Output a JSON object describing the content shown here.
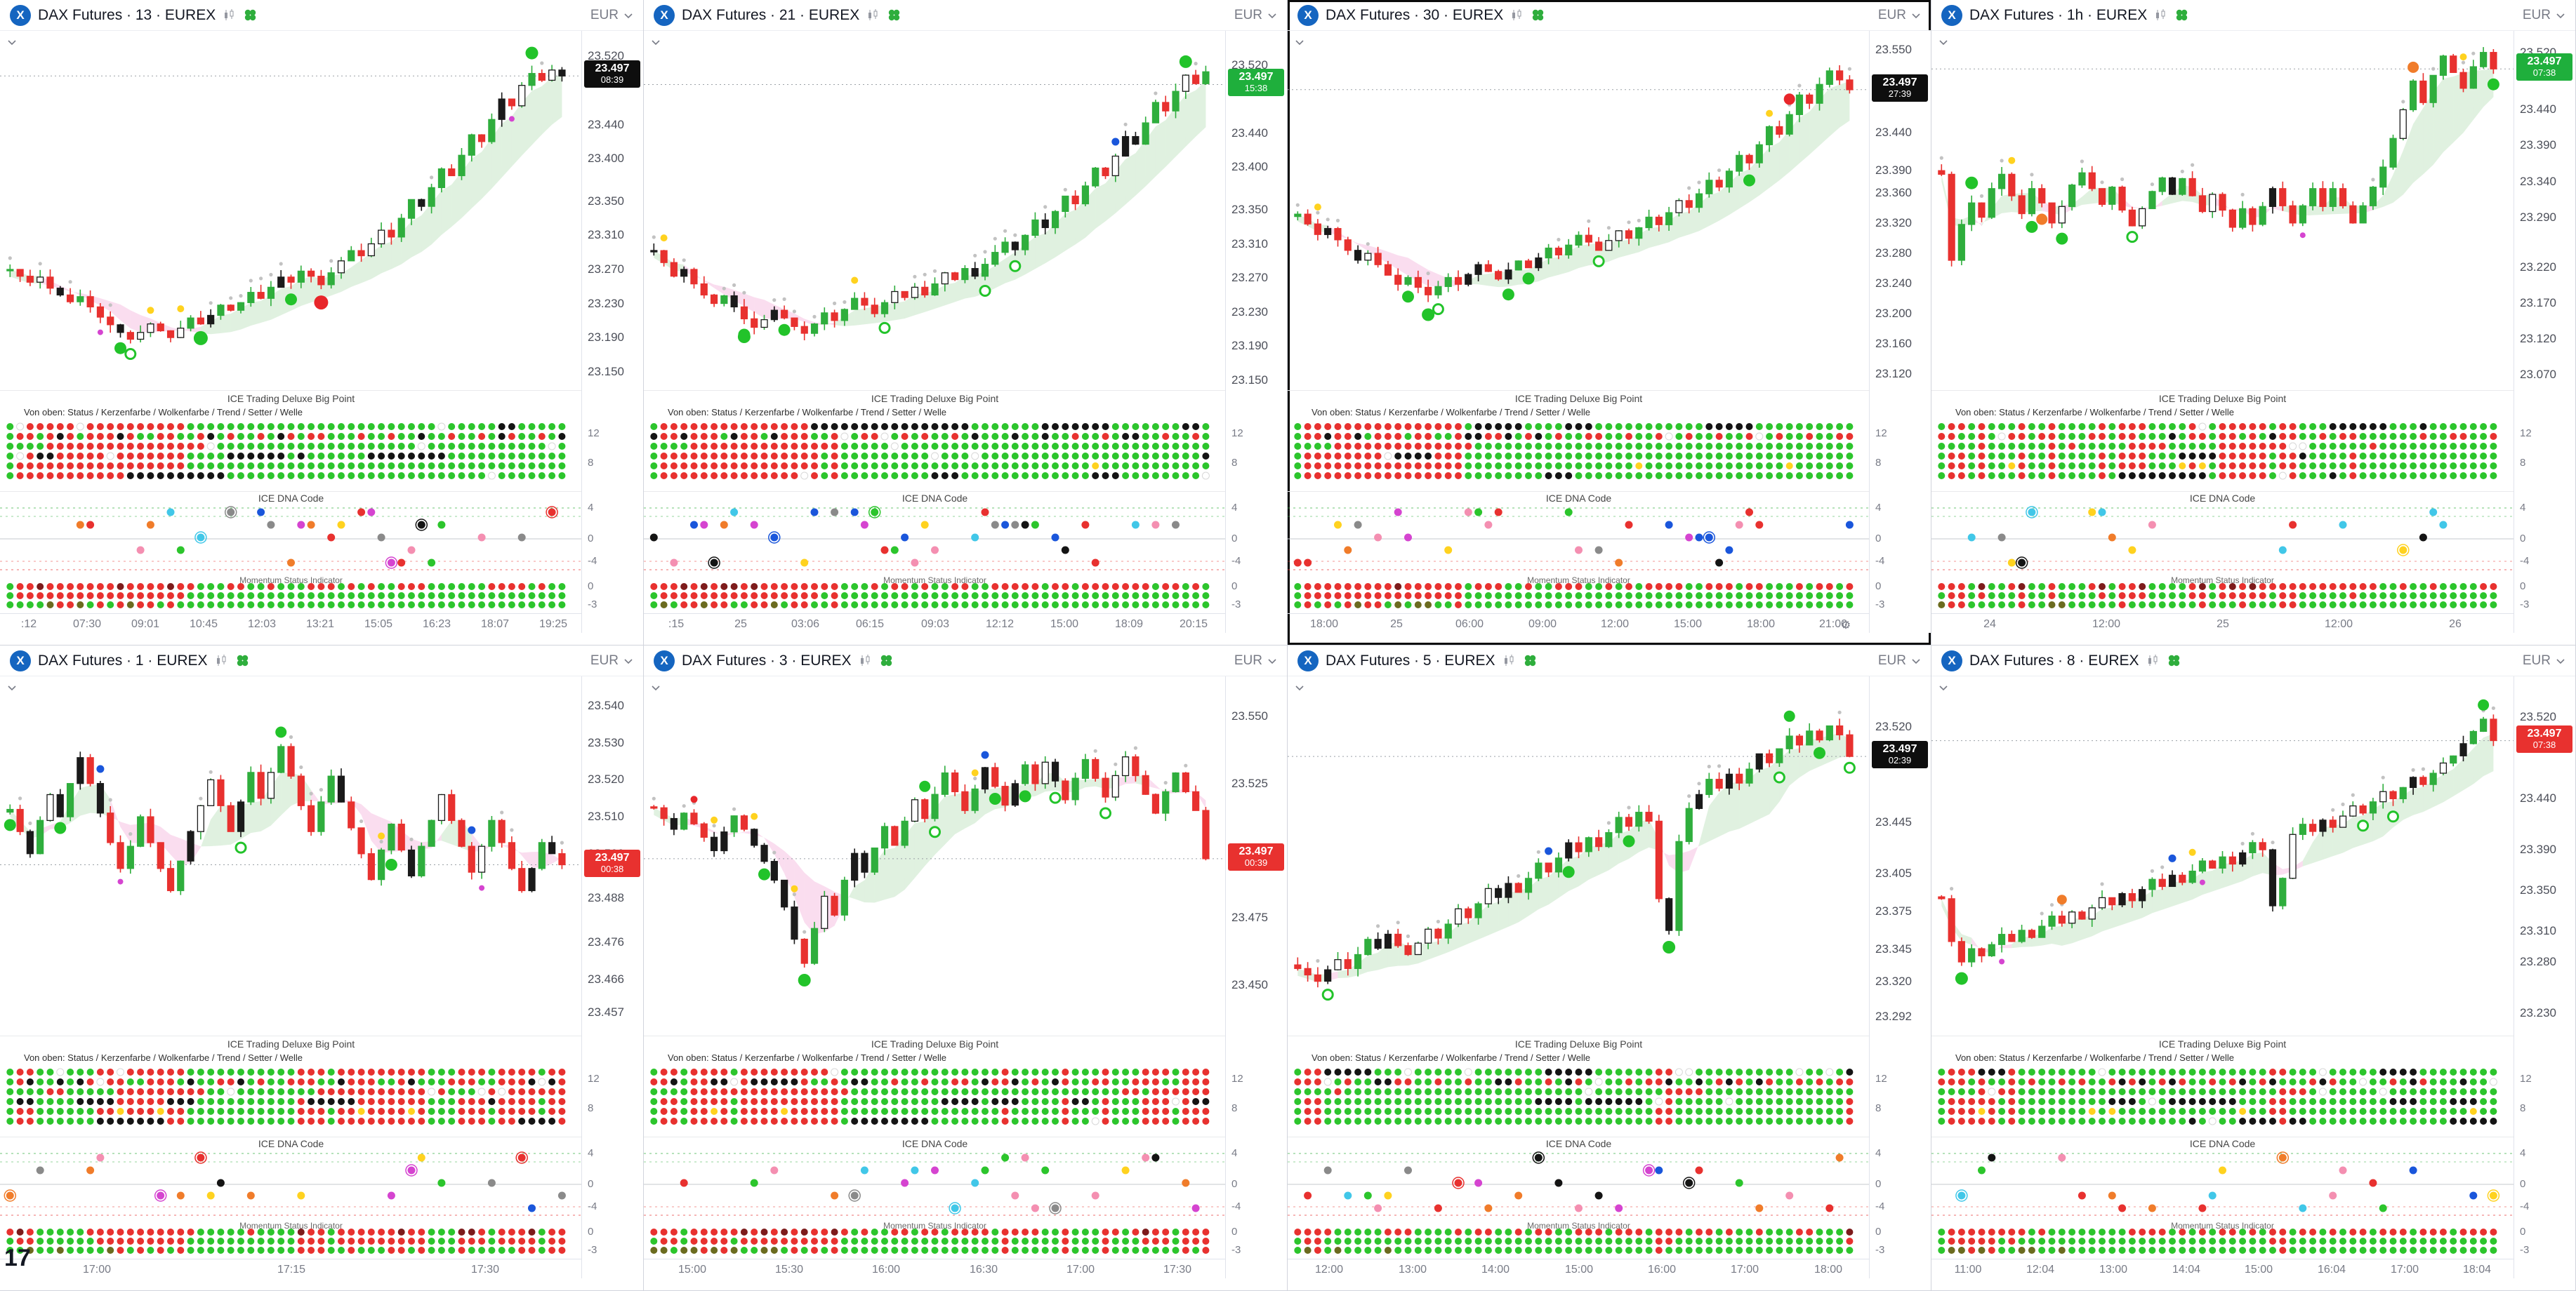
{
  "app": {
    "currency": "EUR",
    "grid": {
      "rows": 2,
      "cols": 4
    }
  },
  "colors": {
    "up": "#2fae3d",
    "down": "#e8312f",
    "black_candle": "#1a1a1a",
    "accent_blue": "#1565c0",
    "badge_black": "#0e0e0e",
    "badge_green": "#1faf3c",
    "badge_red": "#e8312f",
    "dot_green": "#2cc52c",
    "dot_red": "#e8312f",
    "dot_black": "#141414",
    "dot_yellow": "#ffd21f",
    "cloud_green": "rgba(130,200,130,0.25)",
    "cloud_pink": "rgba(242,166,214,0.38)",
    "dna_palette": [
      "#1a56db",
      "#e8312f",
      "#2cc52c",
      "#141414",
      "#d544d0",
      "#f07c2a",
      "#ffd21f",
      "#41c7e8",
      "#f48fb1",
      "#8a8a8a"
    ]
  },
  "indicators": {
    "big_point_title": "ICE Trading Deluxe Big Point",
    "big_point_subtitle": "Von oben: Status / Kerzenfarbe / Wolkenfarbe / Trend / Setter / Welle",
    "big_point_ticks": [
      "12",
      "8"
    ],
    "dna_title": "ICE DNA Code",
    "dna_ticks": [
      "4",
      "0",
      "-4"
    ],
    "momentum_title": "Momentum Status Indicator",
    "momentum_ticks": [
      "0",
      "-3"
    ]
  },
  "panels": [
    {
      "title": "DAX Futures · 13 · EUREX",
      "timeframe": "13",
      "exchange": "EUREX",
      "selected": false,
      "seed": 13,
      "min": 23.125,
      "max": 23.55,
      "ticks": [
        "23.520",
        "23.440",
        "23.400",
        "23.350",
        "23.310",
        "23.270",
        "23.230",
        "23.190",
        "23.150"
      ],
      "badge": {
        "price": "23.497",
        "time": "08:39",
        "style": "black",
        "value": 23.497
      },
      "time_labels": [
        ":12",
        "07:30",
        "09:01",
        "10:45",
        "12:03",
        "13:21",
        "15:05",
        "16:23",
        "18:07",
        "19:25"
      ],
      "gear": false,
      "big_label": "",
      "closes": [
        23.27,
        23.262,
        23.255,
        23.261,
        23.248,
        23.24,
        23.232,
        23.238,
        23.226,
        23.214,
        23.205,
        23.196,
        23.188,
        23.196,
        23.206,
        23.198,
        23.19,
        23.201,
        23.213,
        23.206,
        23.216,
        23.228,
        23.222,
        23.231,
        23.243,
        23.236,
        23.249,
        23.261,
        23.255,
        23.268,
        23.262,
        23.252,
        23.266,
        23.28,
        23.292,
        23.286,
        23.3,
        23.316,
        23.308,
        23.33,
        23.352,
        23.344,
        23.366,
        23.388,
        23.38,
        23.404,
        23.428,
        23.42,
        23.446,
        23.47,
        23.462,
        23.486,
        23.5,
        23.492,
        23.504,
        23.497
      ],
      "markers": [
        {
          "i": 19,
          "color": "#22c32a",
          "r": 10,
          "side": "below"
        },
        {
          "i": 31,
          "color": "#e8262a",
          "r": 10,
          "side": "below"
        },
        {
          "i": 52,
          "color": "#22c32a",
          "r": 9,
          "side": "above"
        }
      ]
    },
    {
      "title": "DAX Futures · 21 · EUREX",
      "timeframe": "21",
      "exchange": "EUREX",
      "selected": false,
      "seed": 21,
      "min": 23.135,
      "max": 23.56,
      "ticks": [
        "23.520",
        "23.440",
        "23.400",
        "23.350",
        "23.310",
        "23.270",
        "23.230",
        "23.190",
        "23.150"
      ],
      "badge": {
        "price": "23.497",
        "time": "15:38",
        "style": "green",
        "value": 23.497
      },
      "time_labels": [
        ":15",
        "25",
        "03:06",
        "06:15",
        "09:03",
        "12:12",
        "15:00",
        "18:09",
        "20:15"
      ],
      "gear": false,
      "big_label": "",
      "closes": [
        23.302,
        23.288,
        23.272,
        23.28,
        23.263,
        23.25,
        23.24,
        23.249,
        23.236,
        23.222,
        23.212,
        23.221,
        23.232,
        23.223,
        23.213,
        23.205,
        23.216,
        23.229,
        23.22,
        23.233,
        23.246,
        23.238,
        23.228,
        23.241,
        23.254,
        23.247,
        23.259,
        23.25,
        23.263,
        23.276,
        23.268,
        23.281,
        23.272,
        23.286,
        23.3,
        23.312,
        23.303,
        23.32,
        23.338,
        23.329,
        23.348,
        23.366,
        23.357,
        23.378,
        23.399,
        23.39,
        23.413,
        23.436,
        23.427,
        23.452,
        23.476,
        23.466,
        23.489,
        23.508,
        23.498,
        23.512
      ],
      "markers": [
        {
          "i": 9,
          "color": "#22c32a",
          "r": 9,
          "side": "below"
        },
        {
          "i": 53,
          "color": "#22c32a",
          "r": 9,
          "side": "above"
        }
      ]
    },
    {
      "title": "DAX Futures · 30 · EUREX",
      "timeframe": "30",
      "exchange": "EUREX",
      "selected": true,
      "seed": 30,
      "min": 23.095,
      "max": 23.575,
      "ticks": [
        "23.550",
        "23.440",
        "23.390",
        "23.360",
        "23.320",
        "23.280",
        "23.240",
        "23.200",
        "23.160",
        "23.120"
      ],
      "badge": {
        "price": "23.497",
        "time": "27:39",
        "style": "black",
        "value": 23.497
      },
      "time_labels": [
        "18:00",
        "25",
        "06:00",
        "09:00",
        "12:00",
        "15:00",
        "18:00",
        "21:00"
      ],
      "gear": true,
      "big_label": "",
      "closes": [
        23.332,
        23.319,
        23.305,
        23.313,
        23.298,
        23.284,
        23.271,
        23.28,
        23.265,
        23.251,
        23.239,
        23.248,
        23.235,
        23.225,
        23.236,
        23.248,
        23.239,
        23.252,
        23.265,
        23.256,
        23.246,
        23.258,
        23.27,
        23.261,
        23.274,
        23.287,
        23.278,
        23.291,
        23.304,
        23.295,
        23.284,
        23.297,
        23.31,
        23.3,
        23.314,
        23.328,
        23.318,
        23.334,
        23.35,
        23.341,
        23.359,
        23.377,
        23.368,
        23.389,
        23.41,
        23.4,
        23.424,
        23.448,
        23.438,
        23.464,
        23.49,
        23.479,
        23.504,
        23.522,
        23.51,
        23.497
      ],
      "markers": [
        {
          "i": 13,
          "color": "#22c32a",
          "r": 9,
          "side": "below"
        },
        {
          "i": 49,
          "color": "#e8262a",
          "r": 8,
          "side": "above"
        }
      ]
    },
    {
      "title": "DAX Futures · 1h · EUREX",
      "timeframe": "1h",
      "exchange": "EUREX",
      "selected": false,
      "seed": 60,
      "min": 23.045,
      "max": 23.55,
      "ticks": [
        "23.520",
        "23.440",
        "23.390",
        "23.340",
        "23.290",
        "23.220",
        "23.170",
        "23.120",
        "23.070"
      ],
      "badge": {
        "price": "23.497",
        "time": "07:38",
        "style": "green",
        "value": 23.497
      },
      "time_labels": [
        "24",
        "12:00",
        "25",
        "12:00",
        "26"
      ],
      "gear": false,
      "big_label": "",
      "closes": [
        23.35,
        23.23,
        23.28,
        23.31,
        23.29,
        23.33,
        23.35,
        23.32,
        23.295,
        23.33,
        23.31,
        23.282,
        23.305,
        23.335,
        23.352,
        23.33,
        23.308,
        23.332,
        23.3,
        23.278,
        23.302,
        23.326,
        23.345,
        23.322,
        23.344,
        23.32,
        23.298,
        23.322,
        23.3,
        23.276,
        23.302,
        23.28,
        23.305,
        23.33,
        23.306,
        23.282,
        23.306,
        23.33,
        23.305,
        23.33,
        23.306,
        23.282,
        23.306,
        23.332,
        23.36,
        23.4,
        23.44,
        23.48,
        23.45,
        23.488,
        23.515,
        23.492,
        23.47,
        23.5,
        23.52,
        23.497
      ],
      "markers": [
        {
          "i": 10,
          "color": "#f07c2a",
          "r": 8,
          "side": "below"
        },
        {
          "i": 47,
          "color": "#f07c2a",
          "r": 8,
          "side": "above"
        },
        {
          "i": 3,
          "color": "#22c32a",
          "r": 9,
          "side": "above"
        }
      ]
    },
    {
      "title": "DAX Futures · 1 · EUREX",
      "timeframe": "1",
      "exchange": "EUREX",
      "selected": false,
      "seed": 1,
      "min": 23.45,
      "max": 23.548,
      "ticks": [
        "23.540",
        "23.530",
        "23.520",
        "23.510",
        "23.500",
        "23.488",
        "23.476",
        "23.466",
        "23.457"
      ],
      "badge": {
        "price": "23.497",
        "time": "00:38",
        "style": "red",
        "value": 23.497
      },
      "time_labels": [
        "17:00",
        "17:15",
        "17:30"
      ],
      "gear": false,
      "big_label": "17",
      "closes": [
        23.512,
        23.506,
        23.5,
        23.509,
        23.516,
        23.51,
        23.519,
        23.526,
        23.519,
        23.511,
        23.503,
        23.496,
        23.502,
        23.51,
        23.503,
        23.496,
        23.49,
        23.498,
        23.506,
        23.513,
        23.52,
        23.513,
        23.506,
        23.514,
        23.522,
        23.515,
        23.522,
        23.529,
        23.521,
        23.513,
        23.506,
        23.514,
        23.521,
        23.514,
        23.507,
        23.5,
        23.493,
        23.501,
        23.508,
        23.501,
        23.494,
        23.502,
        23.509,
        23.516,
        23.509,
        23.502,
        23.495,
        23.502,
        23.509,
        23.503,
        23.496,
        23.49,
        23.496,
        23.503,
        23.5,
        23.497
      ],
      "markers": [
        {
          "i": 27,
          "color": "#22c32a",
          "r": 8,
          "side": "above"
        }
      ]
    },
    {
      "title": "DAX Futures · 3 · EUREX",
      "timeframe": "3",
      "exchange": "EUREX",
      "selected": false,
      "seed": 3,
      "min": 23.43,
      "max": 23.565,
      "ticks": [
        "23.550",
        "23.525",
        "23.500",
        "23.475",
        "23.450"
      ],
      "badge": {
        "price": "23.497",
        "time": "00:39",
        "style": "red",
        "value": 23.497
      },
      "time_labels": [
        "15:00",
        "15:30",
        "16:00",
        "16:30",
        "17:00",
        "17:30"
      ],
      "gear": false,
      "big_label": "",
      "closes": [
        23.516,
        23.512,
        23.508,
        23.514,
        23.51,
        23.505,
        23.5,
        23.507,
        23.513,
        23.508,
        23.502,
        23.496,
        23.489,
        23.479,
        23.467,
        23.458,
        23.471,
        23.483,
        23.476,
        23.489,
        23.499,
        23.492,
        23.501,
        23.509,
        23.502,
        23.511,
        23.519,
        23.512,
        23.521,
        23.529,
        23.522,
        23.515,
        23.523,
        23.531,
        23.524,
        23.517,
        23.525,
        23.532,
        23.525,
        23.533,
        23.526,
        23.519,
        23.527,
        23.534,
        23.527,
        23.52,
        23.528,
        23.535,
        23.528,
        23.521,
        23.514,
        23.522,
        23.529,
        23.522,
        23.515,
        23.497
      ],
      "markers": [
        {
          "i": 4,
          "color": "#e8262a",
          "r": 5,
          "side": "above"
        },
        {
          "i": 27,
          "color": "#22c32a",
          "r": 8,
          "side": "above"
        },
        {
          "i": 15,
          "color": "#22c32a",
          "r": 9,
          "side": "below"
        }
      ]
    },
    {
      "title": "DAX Futures · 5 · EUREX",
      "timeframe": "5",
      "exchange": "EUREX",
      "selected": false,
      "seed": 5,
      "min": 23.275,
      "max": 23.56,
      "ticks": [
        "23.520",
        "23.445",
        "23.405",
        "23.375",
        "23.345",
        "23.320",
        "23.292"
      ],
      "badge": {
        "price": "23.497",
        "time": "02:39",
        "style": "black",
        "value": 23.497
      },
      "time_labels": [
        "12:00",
        "13:00",
        "14:00",
        "15:00",
        "16:00",
        "17:00",
        "18:00"
      ],
      "gear": false,
      "big_label": "",
      "closes": [
        23.33,
        23.325,
        23.32,
        23.329,
        23.337,
        23.33,
        23.341,
        23.353,
        23.346,
        23.357,
        23.348,
        23.341,
        23.35,
        23.361,
        23.354,
        23.365,
        23.377,
        23.37,
        23.381,
        23.393,
        23.386,
        23.397,
        23.39,
        23.401,
        23.413,
        23.406,
        23.417,
        23.429,
        23.422,
        23.433,
        23.426,
        23.437,
        23.449,
        23.442,
        23.453,
        23.446,
        23.385,
        23.36,
        23.43,
        23.456,
        23.467,
        23.479,
        23.472,
        23.483,
        23.476,
        23.487,
        23.499,
        23.492,
        23.503,
        23.513,
        23.506,
        23.517,
        23.51,
        23.521,
        23.514,
        23.497
      ],
      "markers": [
        {
          "i": 37,
          "color": "#22c32a",
          "r": 9,
          "side": "below"
        },
        {
          "i": 49,
          "color": "#22c32a",
          "r": 8,
          "side": "above"
        }
      ]
    },
    {
      "title": "DAX Futures · 8 · EUREX",
      "timeframe": "8",
      "exchange": "EUREX",
      "selected": false,
      "seed": 8,
      "min": 23.205,
      "max": 23.56,
      "ticks": [
        "23.520",
        "23.440",
        "23.390",
        "23.350",
        "23.310",
        "23.280",
        "23.230"
      ],
      "badge": {
        "price": "23.497",
        "time": "07:38",
        "style": "red",
        "value": 23.497
      },
      "time_labels": [
        "11:00",
        "12:04",
        "13:00",
        "14:04",
        "15:00",
        "16:04",
        "17:00",
        "18:04"
      ],
      "gear": false,
      "big_label": "",
      "closes": [
        23.342,
        23.3,
        23.28,
        23.293,
        23.286,
        23.297,
        23.307,
        23.3,
        23.311,
        23.304,
        23.315,
        23.325,
        23.318,
        23.329,
        23.322,
        23.333,
        23.343,
        23.336,
        23.347,
        23.34,
        23.351,
        23.361,
        23.354,
        23.365,
        23.358,
        23.369,
        23.379,
        23.372,
        23.383,
        23.376,
        23.387,
        23.397,
        23.39,
        23.335,
        23.362,
        23.405,
        23.415,
        23.408,
        23.419,
        23.412,
        23.423,
        23.433,
        23.426,
        23.437,
        23.447,
        23.44,
        23.451,
        23.461,
        23.454,
        23.465,
        23.475,
        23.482,
        23.494,
        23.506,
        23.518,
        23.497
      ],
      "markers": [
        {
          "i": 2,
          "color": "#22c32a",
          "r": 9,
          "side": "below"
        },
        {
          "i": 54,
          "color": "#22c32a",
          "r": 8,
          "side": "above"
        },
        {
          "i": 12,
          "color": "#f07c2a",
          "r": 7,
          "side": "above"
        }
      ]
    }
  ]
}
